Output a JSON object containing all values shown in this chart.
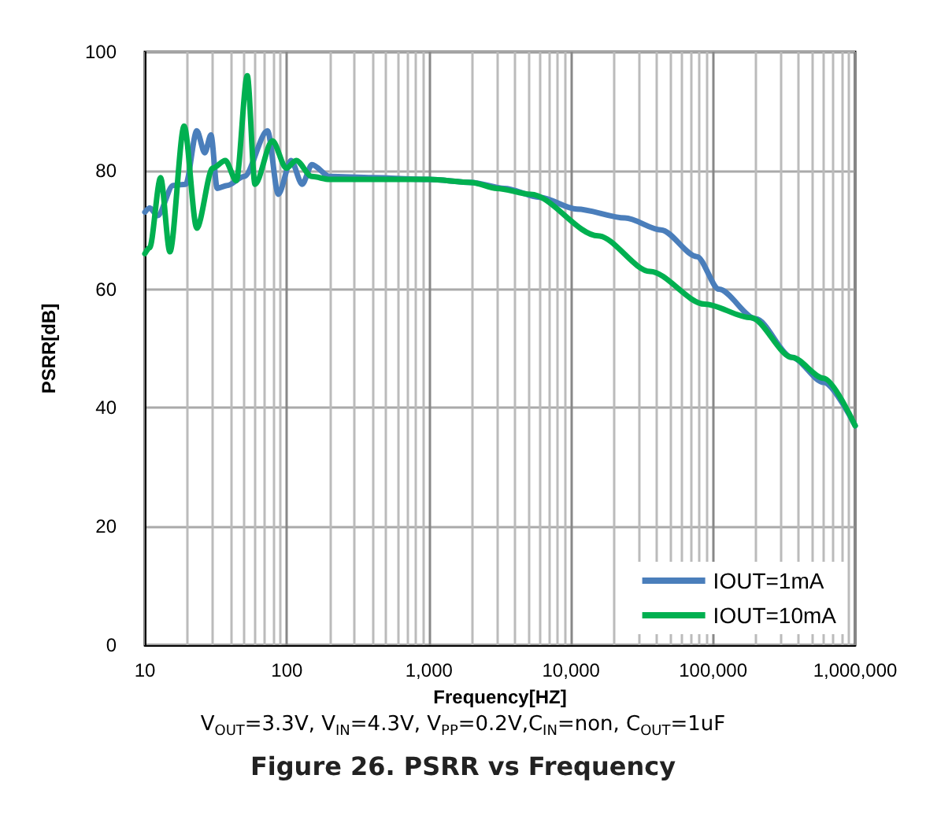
{
  "chart_data": {
    "type": "line",
    "title": "Figure 26. PSRR vs Frequency",
    "subtitle": "V$_{OUT}$=3.3V, V$_{IN}$=4.3V, V$_{PP}$=0.2V,C$_{IN}$=non, C$_{OUT}$=1uF",
    "xlabel": "Frequency[HZ]",
    "ylabel": "PSRR[dB]",
    "log": "x",
    "xlim": [
      10,
      1000000
    ],
    "xticks": [
      10,
      100,
      {
        "value": 1000,
        "label": "1,000"
      },
      {
        "value": 10000,
        "label": "10,000"
      },
      {
        "value": 100000,
        "label": "100,000"
      },
      {
        "value": 1000000,
        "label": "1,000,000"
      }
    ],
    "ylim": [
      0,
      100
    ],
    "yticks": [
      0,
      20,
      40,
      60,
      80,
      100
    ],
    "grid": true,
    "legend": "bottom right",
    "marker": "none",
    "line_style": "solid",
    "series": [
      {
        "name": "IOUT=1mA",
        "color": "#4a7ebb",
        "x": [
          10,
          10.8,
          12.3,
          15.8,
          19.4,
          23.2,
          26.4,
          29.2,
          32.3,
          38,
          50,
          73,
          87,
          107,
          128,
          150,
          200,
          400,
          1000,
          2000,
          3400,
          6000,
          11000,
          24000,
          43000,
          77000,
          110000,
          200000,
          360000,
          600000,
          1000000
        ],
        "values": [
          73,
          73.7,
          72.4,
          77.5,
          77.7,
          86.7,
          83,
          86,
          77,
          77.5,
          79,
          86.7,
          76,
          81.7,
          77.7,
          81,
          79,
          78.8,
          78.5,
          78,
          77,
          75.5,
          73.5,
          72,
          70,
          65.5,
          60,
          55,
          48.5,
          44.3,
          37
        ]
      },
      {
        "name": "IOUT=10mA",
        "color": "#00b050",
        "x": [
          10,
          10.8,
          12.9,
          15,
          18.9,
          23.2,
          30,
          36.8,
          44,
          52.6,
          59.6,
          79,
          99,
          116,
          150,
          200,
          400,
          1000,
          2000,
          3000,
          5200,
          15500,
          36000,
          87000,
          185000,
          360000,
          600000,
          1000000
        ],
        "values": [
          66,
          67,
          78.8,
          66.3,
          87.5,
          70.3,
          80.4,
          81.7,
          78.3,
          96,
          77.7,
          85,
          80.4,
          81.7,
          79,
          78.5,
          78.5,
          78.5,
          78,
          77,
          76,
          69,
          63,
          57.5,
          55.2,
          48.5,
          45,
          37
        ]
      }
    ]
  }
}
